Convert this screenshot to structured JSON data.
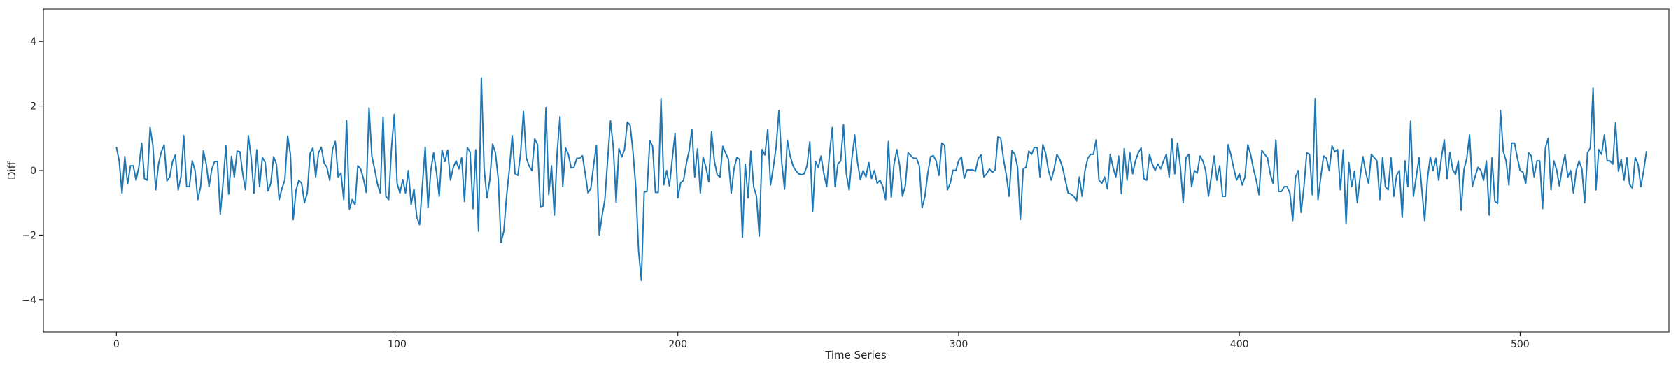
{
  "chart_data": {
    "type": "line",
    "title": "",
    "xlabel": "Time Series",
    "ylabel": "Diff",
    "xlim": [
      -26,
      553
    ],
    "ylim": [
      -5,
      5
    ],
    "xticks": [
      0,
      100,
      200,
      300,
      400,
      500
    ],
    "yticks": [
      -4,
      -2,
      0,
      2,
      4
    ],
    "grid": false,
    "legend": "none",
    "color": "#1f77b4",
    "series": [
      {
        "x_start": 0,
        "x_step": 1,
        "values": [
          0.73,
          0.3,
          -0.7,
          0.43,
          -0.42,
          0.15,
          0.15,
          -0.3,
          0.11,
          0.85,
          -0.25,
          -0.3,
          1.33,
          0.78,
          -0.6,
          0.2,
          0.58,
          0.79,
          -0.32,
          -0.2,
          0.28,
          0.48,
          -0.6,
          -0.2,
          1.08,
          -0.5,
          -0.5,
          0.3,
          0.01,
          -0.9,
          -0.5,
          0.61,
          0.2,
          -0.5,
          0.05,
          0.28,
          0.28,
          -1.35,
          -0.38,
          0.76,
          -0.73,
          0.44,
          -0.2,
          0.6,
          0.58,
          -0.1,
          -0.6,
          1.08,
          0.4,
          -0.7,
          0.64,
          -0.5,
          0.41,
          0.25,
          -0.63,
          -0.4,
          0.43,
          0.2,
          -0.9,
          -0.55,
          -0.3,
          1.07,
          0.5,
          -1.52,
          -0.61,
          -0.3,
          -0.4,
          -1.0,
          -0.7,
          0.53,
          0.7,
          -0.2,
          0.55,
          0.72,
          0.23,
          0.1,
          -0.3,
          0.65,
          0.9,
          -0.2,
          -0.08,
          -0.9,
          1.55,
          -1.2,
          -0.9,
          -1.06,
          0.15,
          0.05,
          -0.25,
          -0.68,
          1.94,
          0.45,
          0.04,
          -0.42,
          -0.7,
          1.65,
          -0.8,
          -0.9,
          0.7,
          1.74,
          -0.4,
          -0.7,
          -0.28,
          -0.7,
          0.0,
          -1.05,
          -0.58,
          -1.44,
          -1.68,
          -0.45,
          0.72,
          -1.15,
          0.0,
          0.55,
          -0.05,
          -0.8,
          0.63,
          0.28,
          0.63,
          -0.3,
          0.1,
          0.3,
          0.05,
          0.4,
          -0.96,
          0.71,
          0.57,
          -1.18,
          0.64,
          -1.88,
          2.87,
          0.05,
          -0.85,
          -0.3,
          0.82,
          0.55,
          -0.24,
          -2.23,
          -1.88,
          -0.78,
          0.05,
          1.08,
          -0.1,
          -0.15,
          0.55,
          1.83,
          0.4,
          0.14,
          0.0,
          0.98,
          0.81,
          -1.12,
          -1.1,
          1.95,
          -0.75,
          0.15,
          -1.38,
          0.55,
          1.67,
          -0.5,
          0.7,
          0.5,
          0.08,
          0.1,
          0.38,
          0.38,
          0.46,
          -0.1,
          -0.7,
          -0.55,
          0.18,
          0.78,
          -2.0,
          -1.4,
          -0.9,
          0.35,
          1.54,
          0.72,
          -0.99,
          0.68,
          0.42,
          0.65,
          1.5,
          1.4,
          0.6,
          -0.5,
          -2.48,
          -3.4,
          -0.67,
          -0.65,
          0.93,
          0.75,
          -0.68,
          -0.68,
          2.23,
          -0.44,
          0.0,
          -0.48,
          0.36,
          1.15,
          -0.85,
          -0.38,
          -0.31,
          0.2,
          0.61,
          1.28,
          -0.2,
          0.67,
          -0.7,
          0.42,
          0.1,
          -0.35,
          1.2,
          0.3,
          -0.13,
          -0.2,
          0.75,
          0.54,
          0.35,
          -0.7,
          0.06,
          0.4,
          0.35,
          -2.07,
          0.2,
          -0.85,
          0.6,
          -0.5,
          -0.8,
          -2.03,
          0.65,
          0.48,
          1.27,
          -0.45,
          0.1,
          0.74,
          1.86,
          0.25,
          -0.58,
          0.94,
          0.45,
          0.15,
          0.0,
          -0.1,
          -0.13,
          -0.1,
          0.15,
          0.89,
          -1.28,
          0.28,
          0.1,
          0.45,
          -0.1,
          -0.5,
          0.5,
          1.33,
          -0.5,
          0.2,
          0.3,
          1.42,
          -0.1,
          -0.6,
          0.38,
          1.1,
          0.25,
          -0.28,
          0.0,
          -0.2,
          0.25,
          -0.25,
          0.0,
          -0.4,
          -0.3,
          -0.5,
          -0.9,
          0.9,
          -0.83,
          0.2,
          0.65,
          0.16,
          -0.8,
          -0.48,
          0.55,
          0.46,
          0.38,
          0.38,
          0.15,
          -1.15,
          -0.8,
          -0.1,
          0.43,
          0.46,
          0.3,
          -0.15,
          0.85,
          0.78,
          -0.6,
          -0.4,
          0.01,
          0.0,
          0.3,
          0.42,
          -0.24,
          0.02,
          0.02,
          0.02,
          -0.02,
          0.38,
          0.48,
          -0.2,
          -0.1,
          0.05,
          -0.06,
          0.02,
          1.04,
          1.0,
          0.35,
          -0.15,
          -0.8,
          0.62,
          0.5,
          0.1,
          -1.52,
          0.05,
          0.1,
          0.6,
          0.5,
          0.72,
          0.7,
          -0.2,
          0.8,
          0.53,
          0.0,
          -0.3,
          0.05,
          0.5,
          0.35,
          0.1,
          -0.3,
          -0.7,
          -0.73,
          -0.8,
          -0.95,
          -0.2,
          -0.8,
          0.0,
          0.38,
          0.5,
          0.5,
          0.95,
          -0.3,
          -0.4,
          -0.2,
          -0.57,
          0.5,
          0.1,
          -0.2,
          0.45,
          -0.72,
          0.68,
          -0.3,
          0.55,
          -0.1,
          0.3,
          0.55,
          0.7,
          -0.25,
          -0.3,
          0.5,
          0.2,
          0.0,
          0.2,
          0.05,
          0.3,
          0.5,
          -0.2,
          0.98,
          -0.1,
          0.85,
          0.1,
          -1.0,
          0.4,
          0.5,
          -0.5,
          0.0,
          -0.08,
          0.45,
          0.3,
          0.0,
          -0.8,
          -0.2,
          0.45,
          -0.3,
          0.15,
          -0.8,
          -0.8,
          0.8,
          0.48,
          0.07,
          -0.3,
          -0.1,
          -0.45,
          -0.2,
          0.8,
          0.5,
          0.06,
          -0.3,
          -0.75,
          0.63,
          0.5,
          0.4,
          -0.1,
          -0.4,
          0.95,
          -0.65,
          -0.65,
          -0.5,
          -0.5,
          -0.7,
          -1.55,
          -0.2,
          0.0,
          -1.3,
          -0.5,
          0.55,
          0.5,
          -0.75,
          2.23,
          -0.9,
          -0.2,
          0.45,
          0.38,
          0.0,
          0.76,
          0.58,
          0.65,
          -0.6,
          0.64,
          -1.65,
          0.25,
          -0.5,
          -0.02,
          -1.0,
          -0.2,
          0.43,
          -0.05,
          -0.4,
          0.5,
          0.4,
          0.3,
          -0.9,
          0.4,
          -0.5,
          -0.6,
          0.4,
          -0.8,
          -0.15,
          0.0,
          -1.45,
          0.3,
          -0.5,
          1.53,
          -0.8,
          -0.2,
          0.4,
          -0.6,
          -1.55,
          -0.24,
          0.42,
          0.0,
          0.38,
          -0.3,
          0.42,
          0.95,
          -0.25,
          0.56,
          0.03,
          -0.12,
          0.3,
          -1.23,
          0.03,
          0.38,
          1.1,
          -0.5,
          -0.18,
          0.1,
          0.01,
          -0.3,
          0.3,
          -1.38,
          0.4,
          -0.95,
          -1.02,
          1.86,
          0.6,
          0.3,
          -0.45,
          0.85,
          0.85,
          0.4,
          0.0,
          -0.05,
          -0.4,
          0.55,
          0.45,
          -0.2,
          0.3,
          0.3,
          -1.18,
          0.7,
          1.0,
          -0.6,
          0.3,
          0.03,
          -0.48,
          0.1,
          0.5,
          -0.2,
          0.0,
          -0.7,
          0.01,
          0.3,
          0.05,
          -1.0,
          0.55,
          0.7,
          2.55,
          -0.6,
          0.65,
          0.5,
          1.1,
          0.3,
          0.3,
          0.2,
          1.48,
          -0.02,
          0.35,
          -0.3,
          0.4,
          -0.43,
          -0.55,
          0.4,
          0.2,
          -0.5,
          0.0,
          0.6
        ]
      }
    ]
  }
}
